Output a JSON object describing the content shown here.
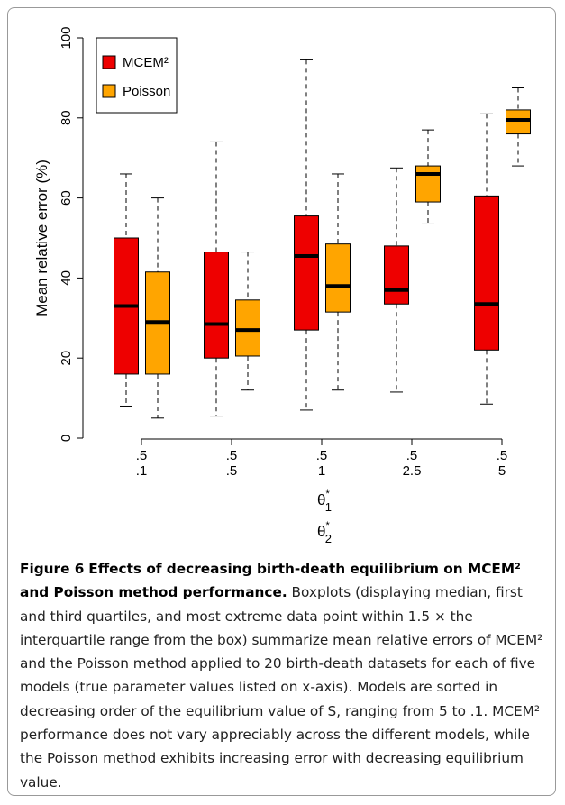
{
  "chart_data": {
    "type": "box",
    "ylabel": "Mean relative error (%)",
    "ylim": [
      0,
      100
    ],
    "yticks": [
      0,
      20,
      40,
      60,
      80,
      100
    ],
    "categories": [
      [
        ".5",
        ".1"
      ],
      [
        ".5",
        ".5"
      ],
      [
        ".5",
        "1"
      ],
      [
        ".5",
        "2.5"
      ],
      [
        ".5",
        "5"
      ]
    ],
    "xlabel": [
      {
        "base": "θ",
        "sup": "*",
        "sub": "1"
      },
      {
        "base": "θ",
        "sup": "*",
        "sub": "2"
      }
    ],
    "legend": "top-left",
    "series": [
      {
        "name": "MCEM²",
        "color": "#ee0000",
        "values": [
          {
            "low": 8,
            "q1": 16,
            "median": 33,
            "q3": 50,
            "high": 66
          },
          {
            "low": 5.5,
            "q1": 20,
            "median": 28.5,
            "q3": 46.5,
            "high": 74
          },
          {
            "low": 7,
            "q1": 27,
            "median": 45.5,
            "q3": 55.5,
            "high": 94.5
          },
          {
            "low": 11.5,
            "q1": 33.5,
            "median": 37,
            "q3": 48,
            "high": 67.5
          },
          {
            "low": 8.5,
            "q1": 22,
            "median": 33.5,
            "q3": 60.5,
            "high": 81
          }
        ]
      },
      {
        "name": "Poisson",
        "color": "#ffa500",
        "values": [
          {
            "low": 5,
            "q1": 16,
            "median": 29,
            "q3": 41.5,
            "high": 60
          },
          {
            "low": 12,
            "q1": 20.5,
            "median": 27,
            "q3": 34.5,
            "high": 46.5
          },
          {
            "low": 12,
            "q1": 31.5,
            "median": 38,
            "q3": 48.5,
            "high": 66
          },
          {
            "low": 53.5,
            "q1": 59,
            "median": 66,
            "q3": 68,
            "high": 77
          },
          {
            "low": 68,
            "q1": 76,
            "median": 79.5,
            "q3": 82,
            "high": 87.5
          }
        ]
      }
    ]
  },
  "caption": {
    "label": "Figure 6",
    "title": "Effects of decreasing birth-death equilibrium on MCEM² and Poisson method performance.",
    "body": "Boxplots (displaying median, first and third quartiles, and most extreme data point within 1.5 × the interquartile range from the box) summarize mean relative errors of MCEM² and the Poisson method applied to 20 birth-death datasets for each of five models (true parameter values listed on x-axis). Models are sorted in decreasing order of the equilibrium value of S, ranging from 5 to .1. MCEM² performance does not vary appreciably across the different models, while the Poisson method exhibits increasing error with decreasing equilibrium value."
  }
}
